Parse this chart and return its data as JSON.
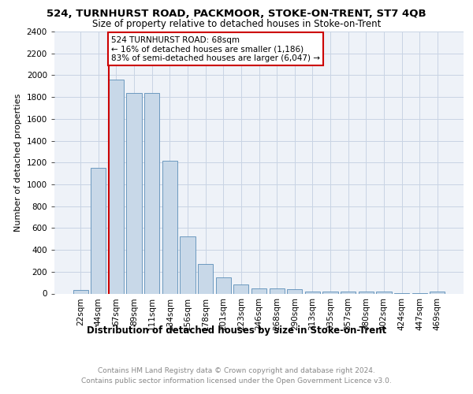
{
  "title": "524, TURNHURST ROAD, PACKMOOR, STOKE-ON-TRENT, ST7 4QB",
  "subtitle": "Size of property relative to detached houses in Stoke-on-Trent",
  "xlabel": "Distribution of detached houses by size in Stoke-on-Trent",
  "ylabel": "Number of detached properties",
  "bin_labels": [
    "22sqm",
    "44sqm",
    "67sqm",
    "89sqm",
    "111sqm",
    "134sqm",
    "156sqm",
    "178sqm",
    "201sqm",
    "223sqm",
    "246sqm",
    "268sqm",
    "290sqm",
    "313sqm",
    "335sqm",
    "357sqm",
    "380sqm",
    "402sqm",
    "424sqm",
    "447sqm",
    "469sqm"
  ],
  "bar_heights": [
    30,
    1150,
    1960,
    1840,
    1840,
    1215,
    520,
    270,
    150,
    85,
    50,
    45,
    40,
    20,
    20,
    20,
    20,
    20,
    5,
    5,
    20
  ],
  "bar_color": "#c8d8e8",
  "bar_edge_color": "#5b8db8",
  "highlight_color": "#cc0000",
  "annotation_text": "524 TURNHURST ROAD: 68sqm\n← 16% of detached houses are smaller (1,186)\n83% of semi-detached houses are larger (6,047) →",
  "annotation_box_color": "#ffffff",
  "annotation_box_edge": "#cc0000",
  "footer1": "Contains HM Land Registry data © Crown copyright and database right 2024.",
  "footer2": "Contains public sector information licensed under the Open Government Licence v3.0.",
  "ylim": [
    0,
    2400
  ],
  "yticks": [
    0,
    200,
    400,
    600,
    800,
    1000,
    1200,
    1400,
    1600,
    1800,
    2000,
    2200,
    2400
  ],
  "grid_color": "#c8d4e4",
  "bg_color": "#eef2f8",
  "title_fontsize": 9.5,
  "subtitle_fontsize": 8.5,
  "ylabel_fontsize": 8,
  "xlabel_fontsize": 8.5,
  "tick_fontsize": 7.5,
  "annotation_fontsize": 7.5,
  "footer_fontsize": 6.5,
  "footer_color": "#888888"
}
